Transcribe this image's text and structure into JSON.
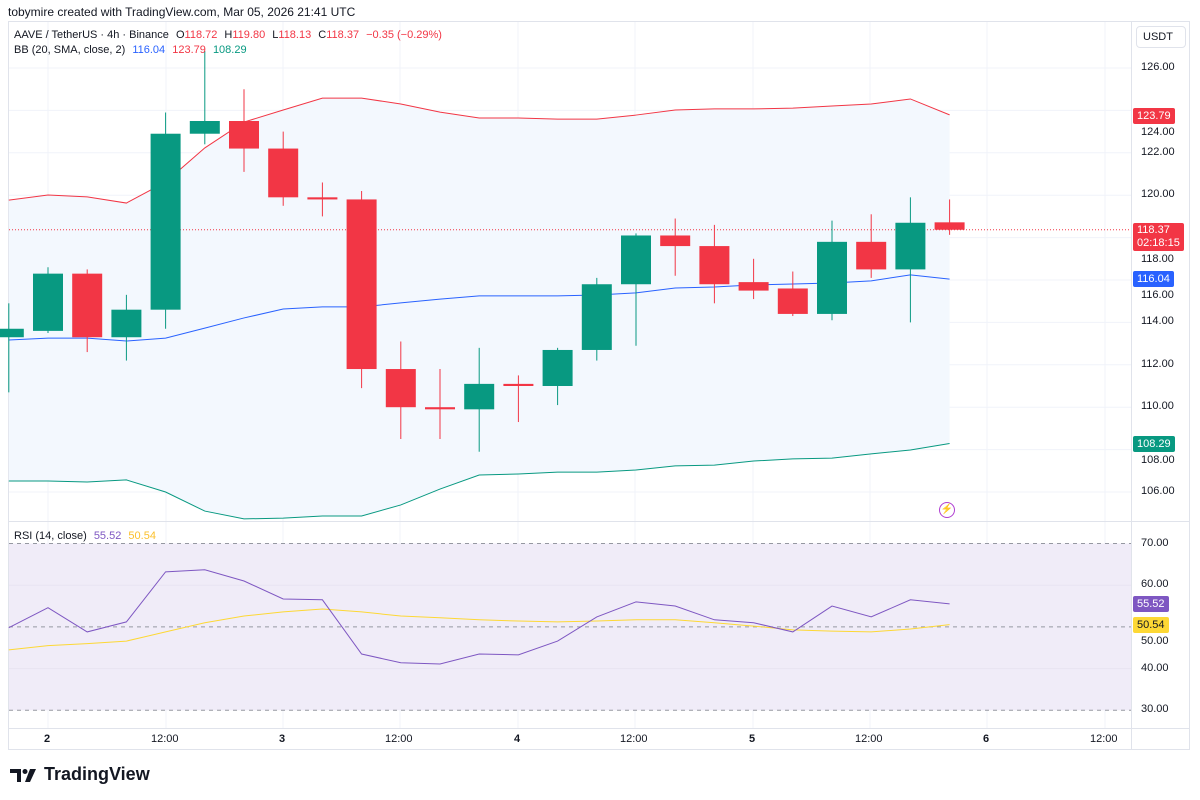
{
  "header": {
    "credit": "tobymire created with TradingView.com, Mar 05, 2026 21:41 UTC"
  },
  "symbol": {
    "title": "AAVE / TetherUS · 4h · Binance",
    "open_label": "O",
    "open": "118.72",
    "high_label": "H",
    "high": "119.80",
    "low_label": "L",
    "low": "118.13",
    "close_label": "C",
    "close": "118.37",
    "change": "−0.35 (−0.29%)"
  },
  "bb": {
    "title": "BB (20, SMA, close, 2)",
    "basis": "116.04",
    "upper": "123.79",
    "lower": "108.29"
  },
  "rsi": {
    "title": "RSI (14, close)",
    "value": "55.52",
    "ma": "50.54"
  },
  "price_axis": {
    "currency": "USDT",
    "ticks": [
      "126.00",
      "124.00",
      "122.00",
      "120.00",
      "118.00",
      "116.00",
      "114.00",
      "112.00",
      "110.00",
      "108.00",
      "106.00"
    ],
    "last_price": "118.37",
    "countdown": "02:18:15"
  },
  "rsi_axis": {
    "ticks": [
      "70.00",
      "60.00",
      "50.00",
      "40.00",
      "30.00"
    ]
  },
  "time_axis": {
    "labels": [
      "2",
      "12:00",
      "3",
      "12:00",
      "4",
      "12:00",
      "5",
      "12:00",
      "6",
      "12:00"
    ]
  },
  "colors": {
    "up": "#089981",
    "down": "#f23645",
    "bb_basis": "#2962ff",
    "bb_upper": "#f23645",
    "bb_lower": "#089981",
    "bb_fill": "#f3f8fe",
    "rsi_line": "#7e57c2",
    "rsi_ma": "#fdd835",
    "rsi_fill": "#f0ecf8",
    "alert_icon": "#b03fd1"
  },
  "icons": {
    "alert": "lightning-bolt-icon",
    "logo": "tradingview-logo-icon"
  },
  "brand": "TradingView",
  "chart_data": [
    {
      "type": "candlestick",
      "title": "AAVE / TetherUS · 4h · Binance",
      "ylim": [
        105,
        127
      ],
      "x": [
        "Mar 1 20:00",
        "Mar 2 00:00",
        "Mar 2 04:00",
        "Mar 2 08:00",
        "Mar 2 12:00",
        "Mar 2 16:00",
        "Mar 2 20:00",
        "Mar 3 00:00",
        "Mar 3 04:00",
        "Mar 3 08:00",
        "Mar 3 12:00",
        "Mar 3 16:00",
        "Mar 3 20:00",
        "Mar 4 00:00",
        "Mar 4 04:00",
        "Mar 4 08:00",
        "Mar 4 12:00",
        "Mar 4 16:00",
        "Mar 4 20:00",
        "Mar 5 00:00",
        "Mar 5 04:00",
        "Mar 5 08:00",
        "Mar 5 12:00",
        "Mar 5 16:00",
        "Mar 5 20:00"
      ],
      "ohlc": [
        [
          113.3,
          114.9,
          110.7,
          113.7
        ],
        [
          113.6,
          116.6,
          113.5,
          116.3
        ],
        [
          116.3,
          116.5,
          112.6,
          113.3
        ],
        [
          113.3,
          115.3,
          112.2,
          114.6
        ],
        [
          114.6,
          123.9,
          113.7,
          122.9
        ],
        [
          122.9,
          126.8,
          122.4,
          123.5
        ],
        [
          123.5,
          125.0,
          121.1,
          122.2
        ],
        [
          122.2,
          123.0,
          119.5,
          119.9
        ],
        [
          119.9,
          120.6,
          119.0,
          119.8
        ],
        [
          119.8,
          120.2,
          110.9,
          111.8
        ],
        [
          111.8,
          113.1,
          108.5,
          110.0
        ],
        [
          110.0,
          111.8,
          108.5,
          109.9
        ],
        [
          109.9,
          112.8,
          107.9,
          111.1
        ],
        [
          111.1,
          111.5,
          109.3,
          111.0
        ],
        [
          111.0,
          112.8,
          110.1,
          112.7
        ],
        [
          112.7,
          116.1,
          112.2,
          115.8
        ],
        [
          115.8,
          118.2,
          112.9,
          118.1
        ],
        [
          118.1,
          118.9,
          116.2,
          117.6
        ],
        [
          117.6,
          118.6,
          114.9,
          115.8
        ],
        [
          115.9,
          117.0,
          115.1,
          115.5
        ],
        [
          115.6,
          116.4,
          114.3,
          114.4
        ],
        [
          114.4,
          118.8,
          114.1,
          117.8
        ],
        [
          117.8,
          119.1,
          116.1,
          116.5
        ],
        [
          116.5,
          119.9,
          114.0,
          118.7
        ],
        [
          118.72,
          119.8,
          118.13,
          118.37
        ]
      ],
      "bb_upper": [
        119.77,
        120.01,
        119.92,
        119.63,
        120.62,
        122.23,
        123.45,
        124.02,
        124.58,
        124.58,
        124.3,
        123.92,
        123.64,
        123.64,
        123.59,
        123.59,
        123.78,
        124.02,
        124.07,
        124.07,
        124.11,
        124.21,
        124.3,
        124.54,
        123.79
      ],
      "bb_basis": [
        113.17,
        113.26,
        113.26,
        113.12,
        113.26,
        113.73,
        114.21,
        114.63,
        114.73,
        114.73,
        114.92,
        115.1,
        115.25,
        115.25,
        115.25,
        115.29,
        115.39,
        115.62,
        115.67,
        115.77,
        115.81,
        115.86,
        115.96,
        116.24,
        116.04
      ],
      "bb_lower": [
        106.52,
        106.52,
        106.47,
        106.57,
        106.0,
        105.1,
        104.73,
        104.77,
        104.87,
        104.87,
        105.39,
        106.14,
        106.8,
        106.85,
        106.94,
        106.94,
        107.04,
        107.23,
        107.27,
        107.46,
        107.56,
        107.6,
        107.8,
        107.98,
        108.29
      ],
      "last_price": 118.37
    },
    {
      "type": "line",
      "title": "RSI (14, close)",
      "ylim": [
        30,
        70
      ],
      "bands": [
        30,
        50,
        70
      ],
      "series": [
        {
          "values": [
            49.8,
            54.6,
            48.8,
            51.2,
            63.2,
            63.7,
            61.0,
            56.7,
            56.5,
            43.5,
            41.4,
            41.1,
            43.5,
            43.3,
            46.6,
            52.4,
            56.0,
            55.0,
            51.7,
            51.0,
            48.8,
            55.0,
            52.4,
            56.5,
            55.52
          ]
        },
        {
          "values": [
            44.5,
            45.5,
            46.0,
            46.6,
            48.8,
            51.0,
            52.6,
            53.6,
            54.3,
            53.6,
            52.6,
            52.2,
            51.7,
            51.4,
            51.2,
            51.4,
            51.7,
            51.7,
            51.0,
            50.2,
            49.3,
            49.0,
            48.8,
            49.5,
            50.54
          ]
        }
      ]
    }
  ]
}
